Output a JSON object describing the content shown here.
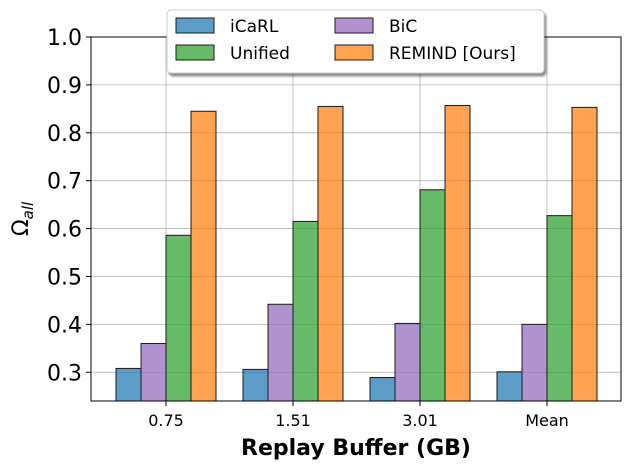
{
  "chart_data": {
    "type": "bar",
    "categories": [
      "0.75",
      "1.51",
      "3.01",
      "Mean"
    ],
    "series": [
      {
        "name": "iCaRL",
        "color": "#1f77b4",
        "values": [
          0.308,
          0.306,
          0.289,
          0.301
        ]
      },
      {
        "name": "BiC",
        "color": "#9467bd",
        "values": [
          0.36,
          0.442,
          0.402,
          0.4
        ]
      },
      {
        "name": "Unified",
        "color": "#2ca02c",
        "values": [
          0.586,
          0.615,
          0.681,
          0.627
        ]
      },
      {
        "name": "REMIND [Ours]",
        "color": "#ff7f0e",
        "values": [
          0.845,
          0.855,
          0.857,
          0.853
        ]
      }
    ],
    "xlabel": "Replay Buffer (GB)",
    "ylabel_main": "Ω",
    "ylabel_sub": "all",
    "ylim": [
      0.24,
      1.0
    ],
    "yticks": [
      "0.3",
      "0.4",
      "0.5",
      "0.6",
      "0.7",
      "0.8",
      "0.9",
      "1.0"
    ],
    "grid": true,
    "legend": {
      "position": "top-center",
      "columns": 2,
      "order": [
        "iCaRL",
        "BiC",
        "Unified",
        "REMIND [Ours]"
      ]
    }
  }
}
